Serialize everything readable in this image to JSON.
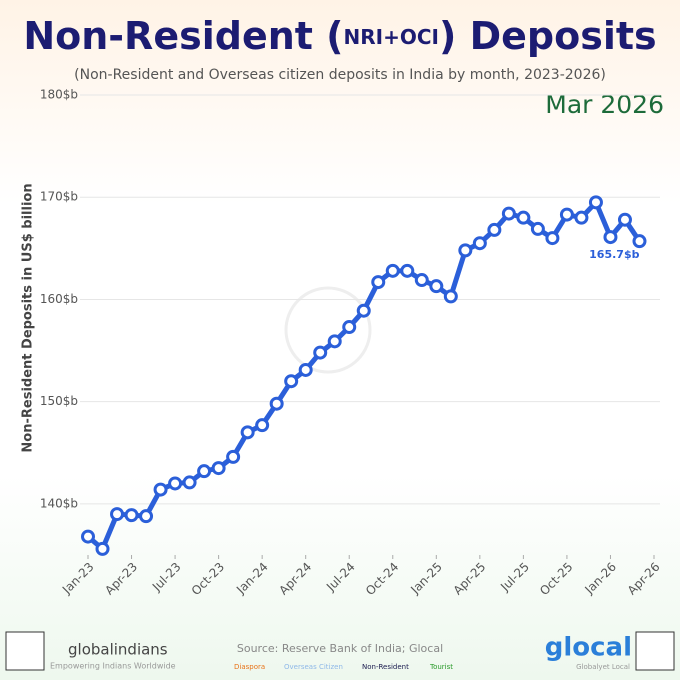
{
  "chart_data": {
    "type": "line",
    "title_parts": [
      "Non-Resident (",
      "NRI+OCI",
      ") Deposits"
    ],
    "subtitle": "(Non-Resident and Overseas citizen deposits in India by month, 2023-2026)",
    "period": "Mar 2026",
    "y_label": "Non-Resident Deposits in US$ billion",
    "x": [
      "2023-01",
      "2023-02",
      "2023-03",
      "2023-04",
      "2023-05",
      "2023-06",
      "2023-07",
      "2023-08",
      "2023-09",
      "2023-10",
      "2023-11",
      "2023-12",
      "2024-01",
      "2024-02",
      "2024-03",
      "2024-04",
      "2024-05",
      "2024-06",
      "2024-07",
      "2024-08",
      "2024-09",
      "2024-10",
      "2024-11",
      "2024-12",
      "2025-01",
      "2025-02",
      "2025-03",
      "2025-04",
      "2025-05",
      "2025-06",
      "2025-07",
      "2025-08",
      "2025-09",
      "2025-10",
      "2025-11",
      "2025-12",
      "2026-01",
      "2026-02",
      "2026-03"
    ],
    "values": [
      136.8,
      135.6,
      139.0,
      138.9,
      138.8,
      141.4,
      142.0,
      142.1,
      143.2,
      143.5,
      144.6,
      147.0,
      147.7,
      149.8,
      152.0,
      153.1,
      154.8,
      155.9,
      157.3,
      158.9,
      161.7,
      162.8,
      162.8,
      161.9,
      161.3,
      160.3,
      164.8,
      165.5,
      166.8,
      168.4,
      168.0,
      166.9,
      166.0,
      168.3,
      168.0,
      169.5,
      166.1,
      167.8,
      165.7
    ],
    "value_labels": [
      null,
      null,
      null,
      null,
      null,
      null,
      null,
      null,
      null,
      null,
      null,
      null,
      null,
      null,
      null,
      null,
      null,
      null,
      null,
      null,
      null,
      null,
      null,
      null,
      null,
      null,
      null,
      null,
      null,
      null,
      null,
      null,
      null,
      null,
      null,
      null,
      null,
      null,
      "165.7$b"
    ],
    "color": "#2b5fd9",
    "xlim": [
      "2023-01",
      "2026-04"
    ],
    "xticks": [
      {
        "value": "2023-01",
        "label": "Jan-23"
      },
      {
        "value": "2023-04",
        "label": "Apr-23"
      },
      {
        "value": "2023-07",
        "label": "Jul-23"
      },
      {
        "value": "2023-10",
        "label": "Oct-23"
      },
      {
        "value": "2024-01",
        "label": "Jan-24"
      },
      {
        "value": "2024-04",
        "label": "Apr-24"
      },
      {
        "value": "2024-07",
        "label": "Jul-24"
      },
      {
        "value": "2024-10",
        "label": "Oct-24"
      },
      {
        "value": "2025-01",
        "label": "Jan-25"
      },
      {
        "value": "2025-04",
        "label": "Apr-25"
      },
      {
        "value": "2025-07",
        "label": "Jul-25"
      },
      {
        "value": "2025-10",
        "label": "Oct-25"
      },
      {
        "value": "2026-01",
        "label": "Jan-26"
      },
      {
        "value": "2026-04",
        "label": "Apr-26"
      }
    ],
    "ylim": [
      135,
      180
    ],
    "yticks": [
      {
        "value": 140,
        "label": "140$b"
      },
      {
        "value": 150,
        "label": "150$b"
      },
      {
        "value": 160,
        "label": "160$b"
      },
      {
        "value": 170,
        "label": "170$b"
      },
      {
        "value": 180,
        "label": "180$b"
      }
    ],
    "grid": true
  },
  "footer": {
    "source": "Source: Reserve Bank of India; Glocal",
    "brand_left": "globalindians",
    "tagline_left": "Empowering Indians Worldwide",
    "brand_right": "glocal",
    "tagline_right": "Globalyet Local",
    "categories": [
      {
        "label": "Diaspora",
        "color": "#e8731a"
      },
      {
        "label": "Overseas Citizen",
        "color": "#8fb8e8"
      },
      {
        "label": "Non-Resident",
        "color": "#1a1a4e"
      },
      {
        "label": "Tourist",
        "color": "#2a9a2a"
      }
    ]
  }
}
